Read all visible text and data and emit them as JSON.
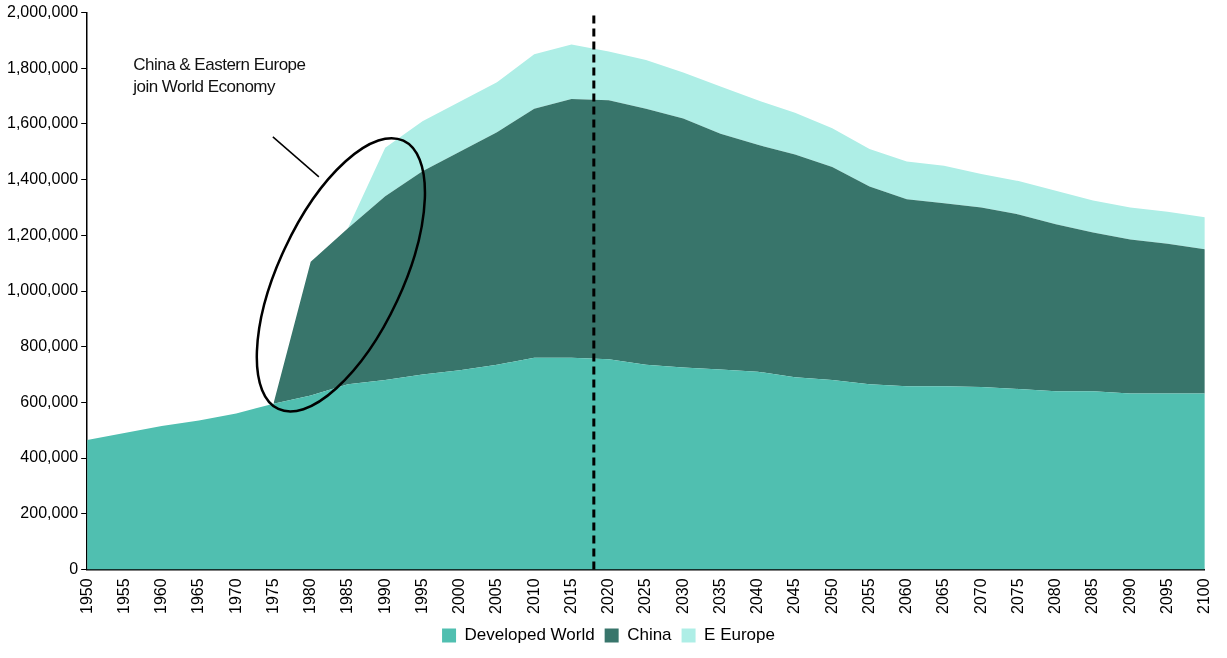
{
  "chart_data": {
    "type": "area",
    "stacked": true,
    "x": [
      1950,
      1955,
      1960,
      1965,
      1970,
      1975,
      1980,
      1985,
      1990,
      1995,
      2000,
      2005,
      2010,
      2015,
      2020,
      2025,
      2030,
      2035,
      2040,
      2045,
      2050,
      2055,
      2060,
      2065,
      2070,
      2075,
      2080,
      2085,
      2090,
      2095,
      2100
    ],
    "series": [
      {
        "name": "Developed World",
        "color": "#50bfb0",
        "values": [
          465000,
          490000,
          515000,
          535000,
          560000,
          595000,
          625000,
          665000,
          680000,
          700000,
          715000,
          735000,
          760000,
          760000,
          755000,
          735000,
          725000,
          718000,
          710000,
          690000,
          680000,
          665000,
          658000,
          658000,
          655000,
          648000,
          640000,
          640000,
          632000,
          632000,
          632000
        ]
      },
      {
        "name": "China",
        "color": "#38756b",
        "values": [
          null,
          null,
          null,
          null,
          null,
          0,
          480000,
          560000,
          660000,
          730000,
          785000,
          835000,
          895000,
          930000,
          930000,
          920000,
          895000,
          847000,
          815000,
          800000,
          765000,
          710000,
          672000,
          657000,
          645000,
          627000,
          600000,
          570000,
          553000,
          538000,
          518000
        ]
      },
      {
        "name": "E Europe",
        "color": "#aeeee6",
        "values": [
          null,
          null,
          null,
          null,
          null,
          null,
          null,
          0,
          175000,
          180000,
          180000,
          180000,
          195000,
          195000,
          175000,
          175000,
          165000,
          170000,
          160000,
          150000,
          140000,
          135000,
          135000,
          135000,
          120000,
          120000,
          120000,
          115000,
          115000,
          115000,
          115000
        ]
      }
    ],
    "xlim": [
      1950,
      2100
    ],
    "xticks": [
      1950,
      1955,
      1960,
      1965,
      1970,
      1975,
      1980,
      1985,
      1990,
      1995,
      2000,
      2005,
      2010,
      2015,
      2020,
      2025,
      2030,
      2035,
      2040,
      2045,
      2050,
      2055,
      2060,
      2065,
      2070,
      2075,
      2080,
      2085,
      2090,
      2095,
      2100
    ],
    "ylim": [
      0,
      2000000
    ],
    "yticks": [
      0,
      {
        "value": 200000,
        "label": "200,000"
      },
      {
        "value": 400000,
        "label": "400,000"
      },
      {
        "value": 600000,
        "label": "600,000"
      },
      {
        "value": 800000,
        "label": "800,000"
      },
      {
        "value": 1000000,
        "label": "1,000,000"
      },
      {
        "value": 1200000,
        "label": "1,200,000"
      },
      {
        "value": 1400000,
        "label": "1,400,000"
      },
      {
        "value": 1600000,
        "label": "1,600,000"
      },
      {
        "value": 1800000,
        "label": "1,800,000"
      },
      {
        "value": 2000000,
        "label": "2,000,000"
      }
    ],
    "ref_lines": [
      {
        "axis": "x",
        "value": 2018,
        "color": "#000000",
        "line_style": "dashed"
      }
    ],
    "annotations": [
      "China & Eastern Europe\njoin World Economy"
    ],
    "grid": false,
    "legend": "bottom"
  }
}
